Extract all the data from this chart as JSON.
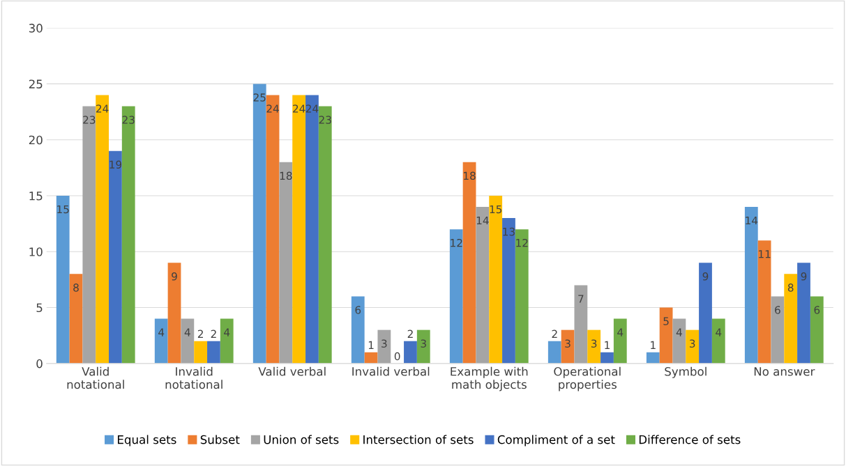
{
  "chart_data": {
    "type": "bar",
    "categories": [
      "Valid\nnotational",
      "Invalid\nnotational",
      "Valid verbal",
      "Invalid verbal",
      "Example with\nmath objects",
      "Operational\nproperties",
      "Symbol",
      "No answer"
    ],
    "series": [
      {
        "name": "Equal sets",
        "color": "#5b9bd5",
        "values": [
          15,
          4,
          25,
          6,
          12,
          2,
          1,
          14
        ]
      },
      {
        "name": "Subset",
        "color": "#ed7d31",
        "values": [
          8,
          9,
          24,
          1,
          18,
          3,
          5,
          11
        ]
      },
      {
        "name": "Union of sets",
        "color": "#a5a5a5",
        "values": [
          23,
          4,
          18,
          3,
          14,
          7,
          4,
          6
        ]
      },
      {
        "name": "Intersection of sets",
        "color": "#ffc000",
        "values": [
          24,
          2,
          24,
          0,
          15,
          3,
          3,
          8
        ]
      },
      {
        "name": "Compliment of a set",
        "color": "#4472c4",
        "values": [
          19,
          2,
          24,
          2,
          13,
          1,
          9,
          9
        ]
      },
      {
        "name": "Difference of sets",
        "color": "#70ad47",
        "values": [
          23,
          4,
          23,
          3,
          12,
          4,
          4,
          6
        ]
      }
    ],
    "ylim": [
      0,
      30
    ],
    "yticks": [
      0,
      5,
      10,
      15,
      20,
      25,
      30
    ],
    "grid": "y",
    "legend": "bottom",
    "data_labels": true
  }
}
